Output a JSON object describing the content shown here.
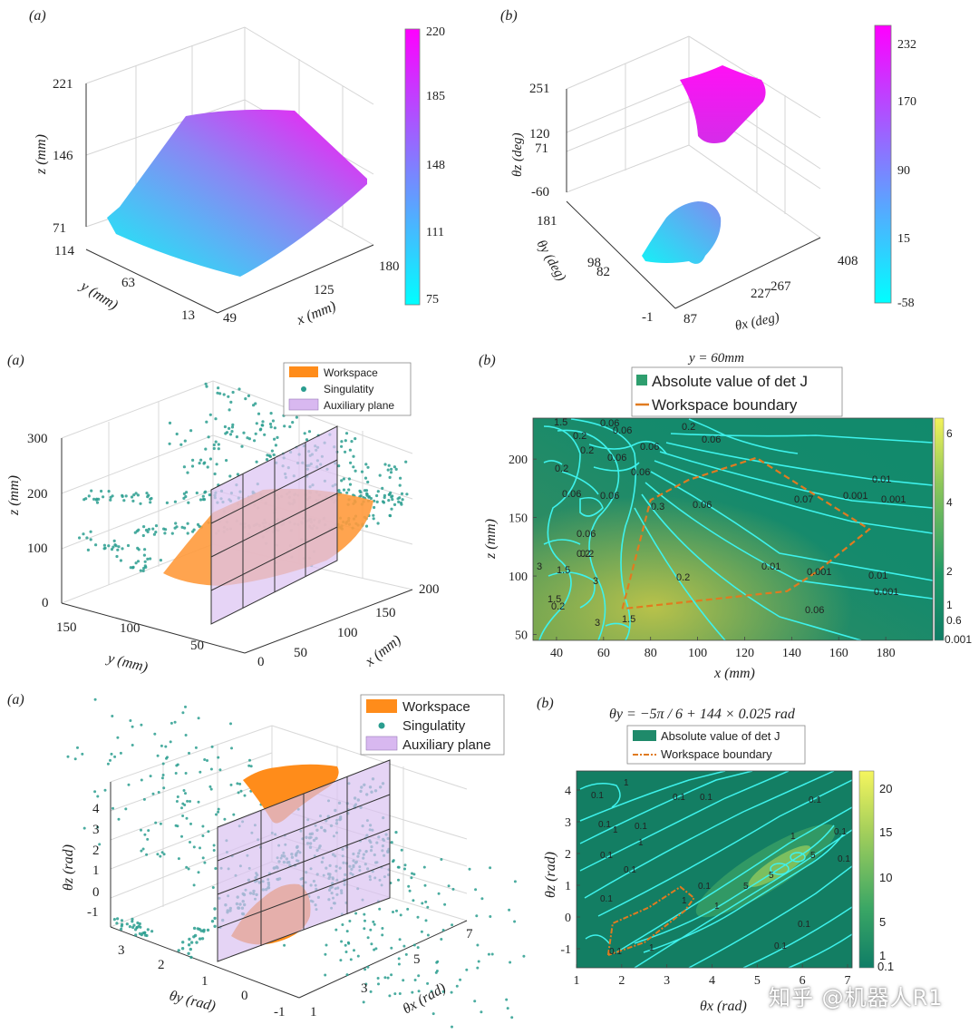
{
  "watermark": "知乎 @机器人R1",
  "chart_data": [
    {
      "type": "surface3d",
      "panel_label": "(a)",
      "xlabel": "x (mm)",
      "ylabel": "y (mm)",
      "zlabel": "z (mm)",
      "x_ticks": [
        "49",
        "125",
        "180"
      ],
      "y_ticks": [
        "13",
        "63",
        "114"
      ],
      "z_ticks": [
        "71",
        "146",
        "221"
      ],
      "colorbar": {
        "ticks": [
          "75",
          "111",
          "148",
          "185",
          "220"
        ],
        "range": [
          75,
          220
        ],
        "colors": [
          "#00ffff",
          "#ff00ff"
        ]
      }
    },
    {
      "type": "surface3d",
      "panel_label": "(b)",
      "xlabel": "θx (deg)",
      "ylabel": "θy (deg)",
      "zlabel": "θz (deg)",
      "x_ticks": [
        "87",
        "227",
        "267",
        "408"
      ],
      "y_ticks": [
        "-1",
        "82",
        "98",
        "181"
      ],
      "z_ticks": [
        "-60",
        "71",
        "120",
        "251"
      ],
      "colorbar": {
        "ticks": [
          "-58",
          "15",
          "90",
          "170",
          "232"
        ],
        "range": [
          -58,
          232
        ],
        "colors": [
          "#00ffff",
          "#ff00ff"
        ]
      }
    },
    {
      "type": "scatter3d",
      "panel_label": "(a)",
      "xlabel": "x (mm)",
      "ylabel": "y (mm)",
      "zlabel": "z (mm)",
      "x_ticks": [
        "50",
        "100",
        "150",
        "200"
      ],
      "y_ticks": [
        "0",
        "50",
        "100",
        "150"
      ],
      "z_ticks": [
        "0",
        "100",
        "200",
        "300"
      ],
      "legend": [
        {
          "label": "Workspace",
          "color": "#ff8c1a",
          "marker": "patch"
        },
        {
          "label": "Singulatity",
          "color": "#2a9d8f",
          "marker": "dot"
        },
        {
          "label": "Auxiliary plane",
          "color": "#d8b8f0",
          "marker": "patch"
        }
      ]
    },
    {
      "type": "contour",
      "panel_label": "(b)",
      "title": "y = 60mm",
      "xlabel": "x (mm)",
      "ylabel": "z (mm)",
      "xlim": [
        30,
        200
      ],
      "ylim": [
        45,
        235
      ],
      "x_ticks": [
        40,
        60,
        80,
        100,
        120,
        140,
        160,
        180
      ],
      "y_ticks": [
        50,
        100,
        150,
        200
      ],
      "legend": [
        {
          "label": "Absolute value of det J",
          "color": "#2e9e6e",
          "marker": "patch"
        },
        {
          "label": "Workspace boundary",
          "color": "#e07b20",
          "marker": "dash"
        }
      ],
      "colorbar": {
        "ticks": [
          "0.001",
          "0.6",
          "1",
          "2",
          "4",
          "6"
        ]
      },
      "contour_labels": [
        "1.5",
        "0.06",
        "0.2",
        "0.06",
        "0.2",
        "0.06",
        "0.06",
        "0.2",
        "0.06",
        "0.2",
        "0.06",
        "0.06",
        "0.3",
        "0.06",
        "0.06",
        "0.2",
        "1.5",
        "3",
        "3",
        "1.5",
        "3",
        "0.2",
        "1.5",
        "0.06",
        "0.01",
        "0.07",
        "0.001",
        "0.001",
        "0.01",
        "0.001",
        "0.01",
        "0.001",
        "0.2",
        "0.06",
        "0.2"
      ],
      "workspace_boundary": [
        [
          68,
          72
        ],
        [
          80,
          165
        ],
        [
          96,
          182
        ],
        [
          125,
          201
        ],
        [
          173,
          140
        ],
        [
          151,
          104
        ],
        [
          138,
          87
        ],
        [
          68,
          72
        ]
      ]
    },
    {
      "type": "scatter3d",
      "panel_label": "(a)",
      "xlabel": "θx (rad)",
      "ylabel": "θy (rad)",
      "zlabel": "θz (rad)",
      "x_ticks": [
        "1",
        "3",
        "5",
        "7"
      ],
      "y_ticks": [
        "-1",
        "0",
        "1",
        "2",
        "3"
      ],
      "z_ticks": [
        "-1",
        "0",
        "1",
        "2",
        "3",
        "4"
      ],
      "legend": [
        {
          "label": "Workspace",
          "color": "#ff8c1a",
          "marker": "patch"
        },
        {
          "label": "Singulatity",
          "color": "#2a9d8f",
          "marker": "dot"
        },
        {
          "label": "Auxiliary plane",
          "color": "#d8b8f0",
          "marker": "patch"
        }
      ]
    },
    {
      "type": "contour",
      "panel_label": "(b)",
      "title": "θy = −5π / 6 + 144 × 0.025 rad",
      "xlabel": "θx (rad)",
      "ylabel": "θz (rad)",
      "xlim": [
        1,
        7.1
      ],
      "ylim": [
        -1.6,
        4.6
      ],
      "x_ticks": [
        1,
        2,
        3,
        4,
        5,
        6,
        7
      ],
      "y_ticks": [
        -1,
        0,
        1,
        2,
        3,
        4
      ],
      "legend": [
        {
          "label": "Absolute value of det J",
          "color": "#1f8a6a",
          "marker": "patch"
        },
        {
          "label": "Workspace boundary",
          "color": "#e07b20",
          "marker": "dashdot"
        }
      ],
      "colorbar": {
        "ticks": [
          "0.1",
          "1",
          "5",
          "10",
          "15",
          "20"
        ]
      },
      "contour_labels": [
        "0.1",
        "1",
        "0.1",
        "1",
        "0.1",
        "0.1",
        "0.1",
        "1",
        "0.1",
        "0.1",
        "1",
        "1",
        "0.1",
        "0.1",
        "0.1",
        "5",
        "5",
        "5",
        "1",
        "0.1",
        "0.1",
        "0.1",
        "0.1",
        "1",
        "0.1"
      ],
      "workspace_boundary": [
        [
          1.7,
          -1.2
        ],
        [
          1.8,
          -0.2
        ],
        [
          2.6,
          0.3
        ],
        [
          3.3,
          0.95
        ],
        [
          3.6,
          0.6
        ],
        [
          3.4,
          0.2
        ],
        [
          2.5,
          -0.8
        ],
        [
          1.7,
          -1.2
        ]
      ]
    }
  ]
}
